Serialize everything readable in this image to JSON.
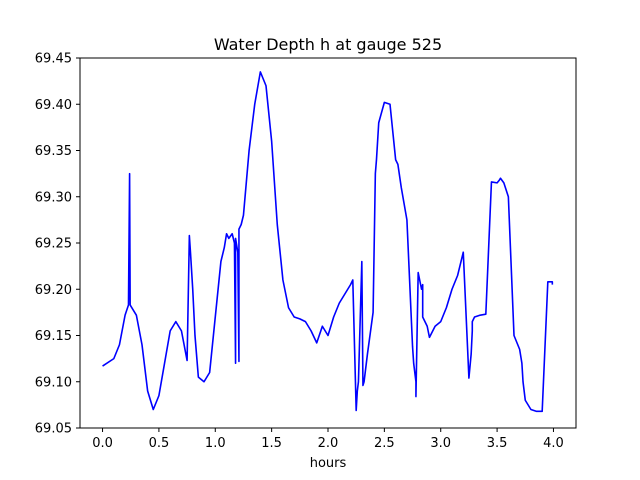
{
  "chart_data": {
    "type": "line",
    "title": "Water Depth h at gauge 525",
    "xlabel": "hours",
    "ylabel": "",
    "xlim": [
      -0.2,
      4.2
    ],
    "ylim": [
      69.05,
      69.45
    ],
    "xticks": [
      "0.0",
      "0.5",
      "1.0",
      "1.5",
      "2.0",
      "2.5",
      "3.0",
      "3.5",
      "4.0"
    ],
    "yticks": [
      "69.05",
      "69.10",
      "69.15",
      "69.20",
      "69.25",
      "69.30",
      "69.35",
      "69.40",
      "69.45"
    ],
    "grid": false,
    "line_color": "#0000ff",
    "series": [
      {
        "x": [
          0.0,
          0.1,
          0.15,
          0.2,
          0.23,
          0.24,
          0.245,
          0.25,
          0.3,
          0.35,
          0.4,
          0.45,
          0.5,
          0.55,
          0.6,
          0.65,
          0.7,
          0.75,
          0.77,
          0.78,
          0.8,
          0.82,
          0.85,
          0.9,
          0.95,
          1.0,
          1.05,
          1.08,
          1.1,
          1.12,
          1.15,
          1.17,
          1.18,
          1.18,
          1.2,
          1.21,
          1.21,
          1.23,
          1.25,
          1.3,
          1.35,
          1.4,
          1.45,
          1.5,
          1.55,
          1.6,
          1.65,
          1.7,
          1.75,
          1.8,
          1.85,
          1.9,
          1.95,
          2.0,
          2.05,
          2.1,
          2.15,
          2.2,
          2.22,
          2.25,
          2.26,
          2.27,
          2.3,
          2.31,
          2.32,
          2.35,
          2.4,
          2.42,
          2.43,
          2.45,
          2.5,
          2.55,
          2.6,
          2.62,
          2.65,
          2.7,
          2.75,
          2.76,
          2.78,
          2.78,
          2.8,
          2.83,
          2.84,
          2.84,
          2.86,
          2.88,
          2.9,
          2.95,
          3.0,
          3.05,
          3.1,
          3.15,
          3.2,
          3.25,
          3.27,
          3.28,
          3.28,
          3.3,
          3.35,
          3.4,
          3.45,
          3.5,
          3.52,
          3.53,
          3.56,
          3.6,
          3.65,
          3.7,
          3.72,
          3.73,
          3.75,
          3.8,
          3.85,
          3.9,
          3.95,
          3.99,
          3.99
        ],
        "y": [
          69.117,
          69.125,
          69.14,
          69.172,
          69.183,
          69.325,
          69.183,
          69.182,
          69.172,
          69.14,
          69.09,
          69.07,
          69.085,
          69.12,
          69.155,
          69.165,
          69.155,
          69.123,
          69.258,
          69.24,
          69.2,
          69.15,
          69.105,
          69.1,
          69.11,
          69.17,
          69.23,
          69.245,
          69.26,
          69.255,
          69.26,
          69.25,
          69.12,
          69.255,
          69.24,
          69.122,
          69.265,
          69.27,
          69.28,
          69.35,
          69.4,
          69.435,
          69.42,
          69.36,
          69.27,
          69.21,
          69.18,
          69.17,
          69.168,
          69.165,
          69.155,
          69.142,
          69.16,
          69.15,
          69.17,
          69.185,
          69.195,
          69.205,
          69.21,
          69.069,
          69.09,
          69.1,
          69.23,
          69.096,
          69.1,
          69.13,
          69.175,
          69.325,
          69.34,
          69.38,
          69.402,
          69.4,
          69.34,
          69.335,
          69.31,
          69.275,
          69.138,
          69.12,
          69.1,
          69.084,
          69.218,
          69.2,
          69.205,
          69.17,
          69.165,
          69.16,
          69.148,
          69.16,
          69.165,
          69.18,
          69.2,
          69.215,
          69.24,
          69.104,
          69.13,
          69.155,
          69.165,
          69.17,
          69.172,
          69.173,
          69.316,
          69.315,
          69.318,
          69.32,
          69.315,
          69.3,
          69.15,
          69.135,
          69.12,
          69.1,
          69.08,
          69.07,
          69.068,
          69.068,
          69.208,
          69.208,
          69.205
        ]
      }
    ]
  }
}
